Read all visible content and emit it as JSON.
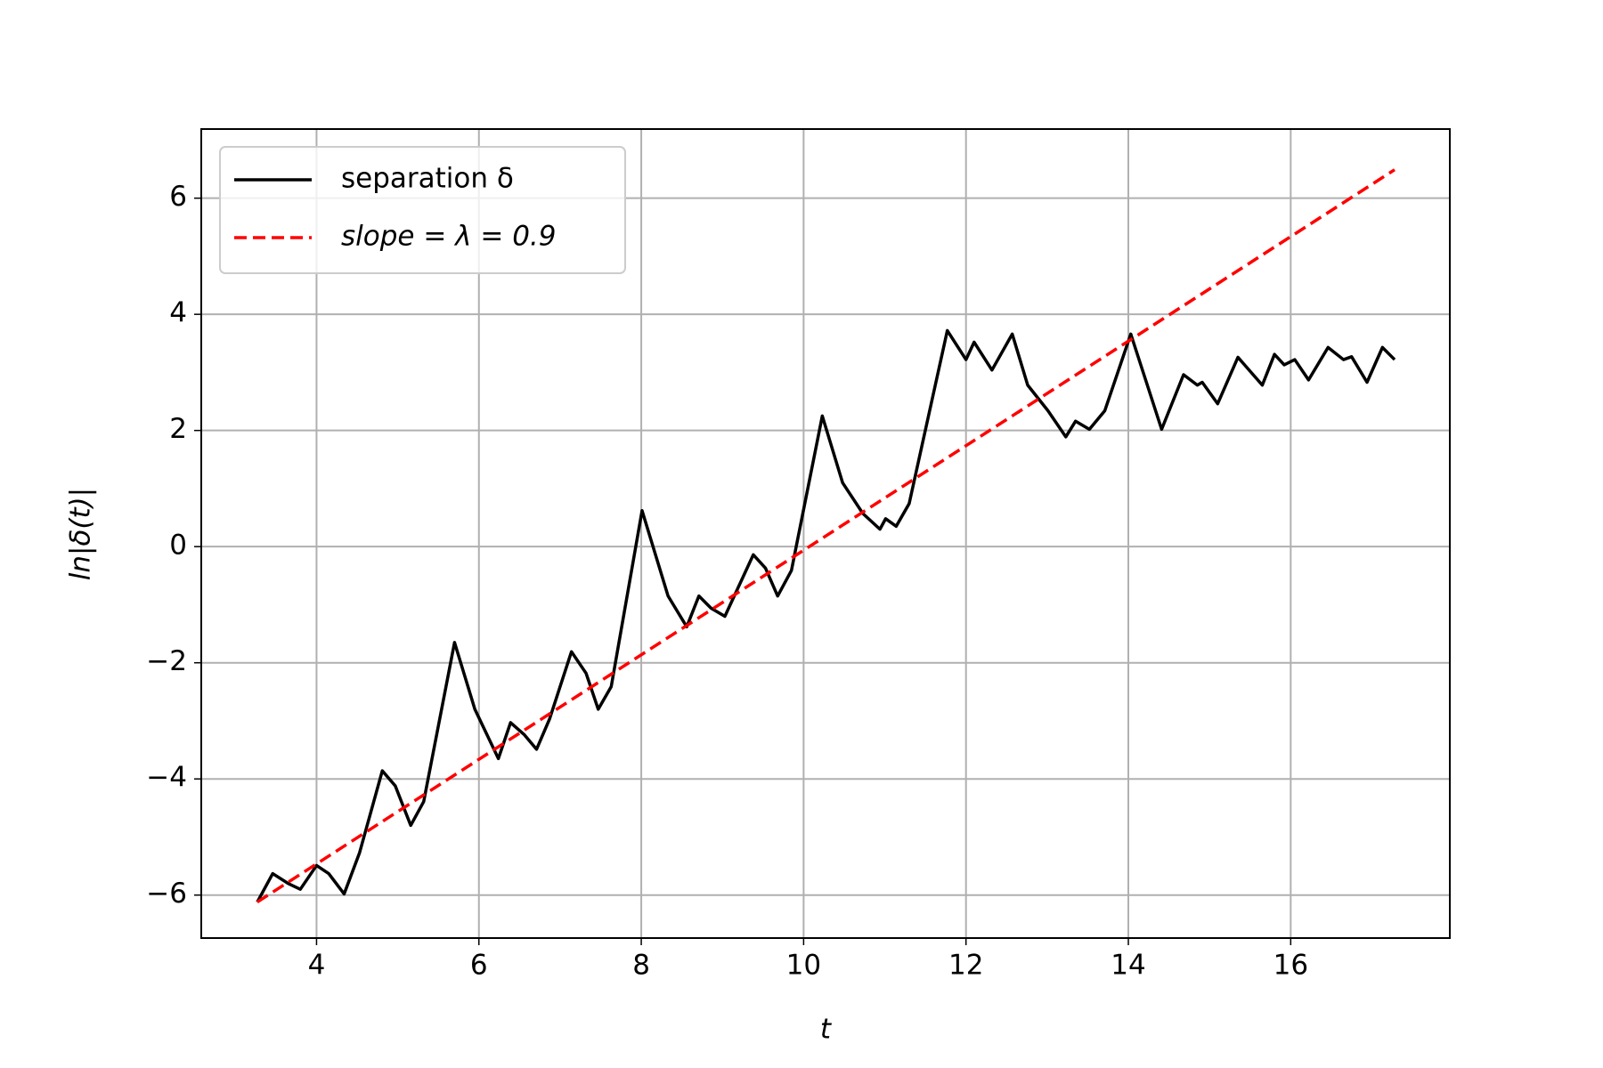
{
  "chart_data": {
    "type": "line",
    "xlabel": "t",
    "ylabel": "ln|δ(t)|",
    "xlim": [
      2.58,
      17.96
    ],
    "ylim": [
      -6.74,
      7.19
    ],
    "xticks": [
      4,
      6,
      8,
      10,
      12,
      14,
      16
    ],
    "yticks": [
      {
        "value": -6,
        "label": "−6"
      },
      {
        "value": -4,
        "label": "−4"
      },
      {
        "value": -2,
        "label": "−2"
      },
      0,
      2,
      4,
      6
    ],
    "grid": true,
    "legend": "upper left",
    "series": [
      {
        "name": "separation δ",
        "color": "#000000",
        "linestyle": "solid",
        "x": [
          3.27,
          3.46,
          3.65,
          3.8,
          4.0,
          4.15,
          4.34,
          4.53,
          4.81,
          4.97,
          5.16,
          5.32,
          5.7,
          5.95,
          6.24,
          6.39,
          6.56,
          6.71,
          6.87,
          7.14,
          7.32,
          7.47,
          7.63,
          8.01,
          8.33,
          8.56,
          8.71,
          8.86,
          9.03,
          9.38,
          9.53,
          9.68,
          9.85,
          10.23,
          10.48,
          10.73,
          10.94,
          11.01,
          11.14,
          11.3,
          11.77,
          12.0,
          12.1,
          12.32,
          12.57,
          12.76,
          13.01,
          13.23,
          13.35,
          13.52,
          13.71,
          14.03,
          14.41,
          14.68,
          14.85,
          14.91,
          15.1,
          15.35,
          15.65,
          15.8,
          15.92,
          16.05,
          16.22,
          16.46,
          16.65,
          16.75,
          16.94,
          17.13,
          17.28
        ],
        "values": [
          -6.12,
          -5.63,
          -5.8,
          -5.9,
          -5.49,
          -5.63,
          -5.98,
          -5.27,
          -3.86,
          -4.12,
          -4.8,
          -4.39,
          -1.65,
          -2.8,
          -3.65,
          -3.03,
          -3.24,
          -3.49,
          -2.97,
          -1.81,
          -2.18,
          -2.8,
          -2.41,
          0.62,
          -0.85,
          -1.38,
          -0.85,
          -1.06,
          -1.2,
          -0.14,
          -0.37,
          -0.85,
          -0.41,
          2.25,
          1.1,
          0.57,
          0.3,
          0.48,
          0.35,
          0.74,
          3.72,
          3.22,
          3.52,
          3.04,
          3.66,
          2.78,
          2.34,
          1.89,
          2.16,
          2.02,
          2.34,
          3.66,
          2.02,
          2.96,
          2.78,
          2.83,
          2.46,
          3.26,
          2.78,
          3.31,
          3.13,
          3.22,
          2.87,
          3.43,
          3.22,
          3.27,
          2.83,
          3.43,
          3.22
        ]
      },
      {
        "name": "slope = λ = 0.9",
        "color": "#ff0000",
        "linestyle": "dashed",
        "x": [
          3.27,
          17.28
        ],
        "values": [
          -6.12,
          6.49
        ]
      }
    ]
  }
}
